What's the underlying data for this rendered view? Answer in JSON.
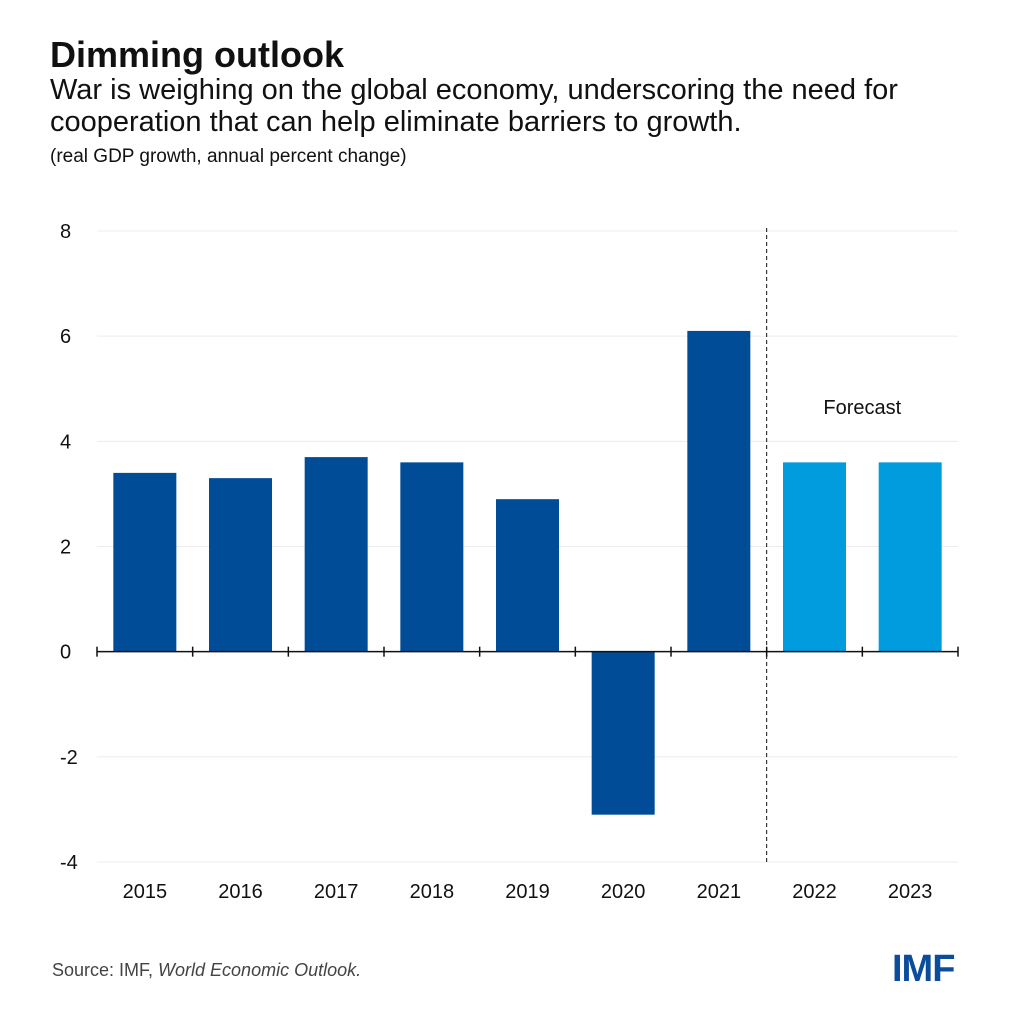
{
  "title": "Dimming outlook",
  "subtitle": "War is weighing on the global economy, underscoring the need for cooperation that can help eliminate barriers to growth.",
  "units": "(real GDP growth, annual percent change)",
  "source_prefix": "Source: IMF, ",
  "source_italic": "World Economic Outlook.",
  "logo": "IMF",
  "chart_data": {
    "type": "bar",
    "categories": [
      "2015",
      "2016",
      "2017",
      "2018",
      "2019",
      "2020",
      "2021",
      "2022",
      "2023"
    ],
    "values": [
      3.4,
      3.3,
      3.7,
      3.6,
      2.9,
      -3.1,
      6.1,
      3.6,
      3.6
    ],
    "forecast": [
      false,
      false,
      false,
      false,
      false,
      false,
      false,
      true,
      true
    ],
    "ylim": [
      -4,
      8
    ],
    "yticks": [
      -4,
      -2,
      0,
      2,
      4,
      6,
      8
    ],
    "grid": true,
    "annotation": "Forecast",
    "colors": {
      "actual": "#004c97",
      "forecast": "#009cde"
    }
  }
}
